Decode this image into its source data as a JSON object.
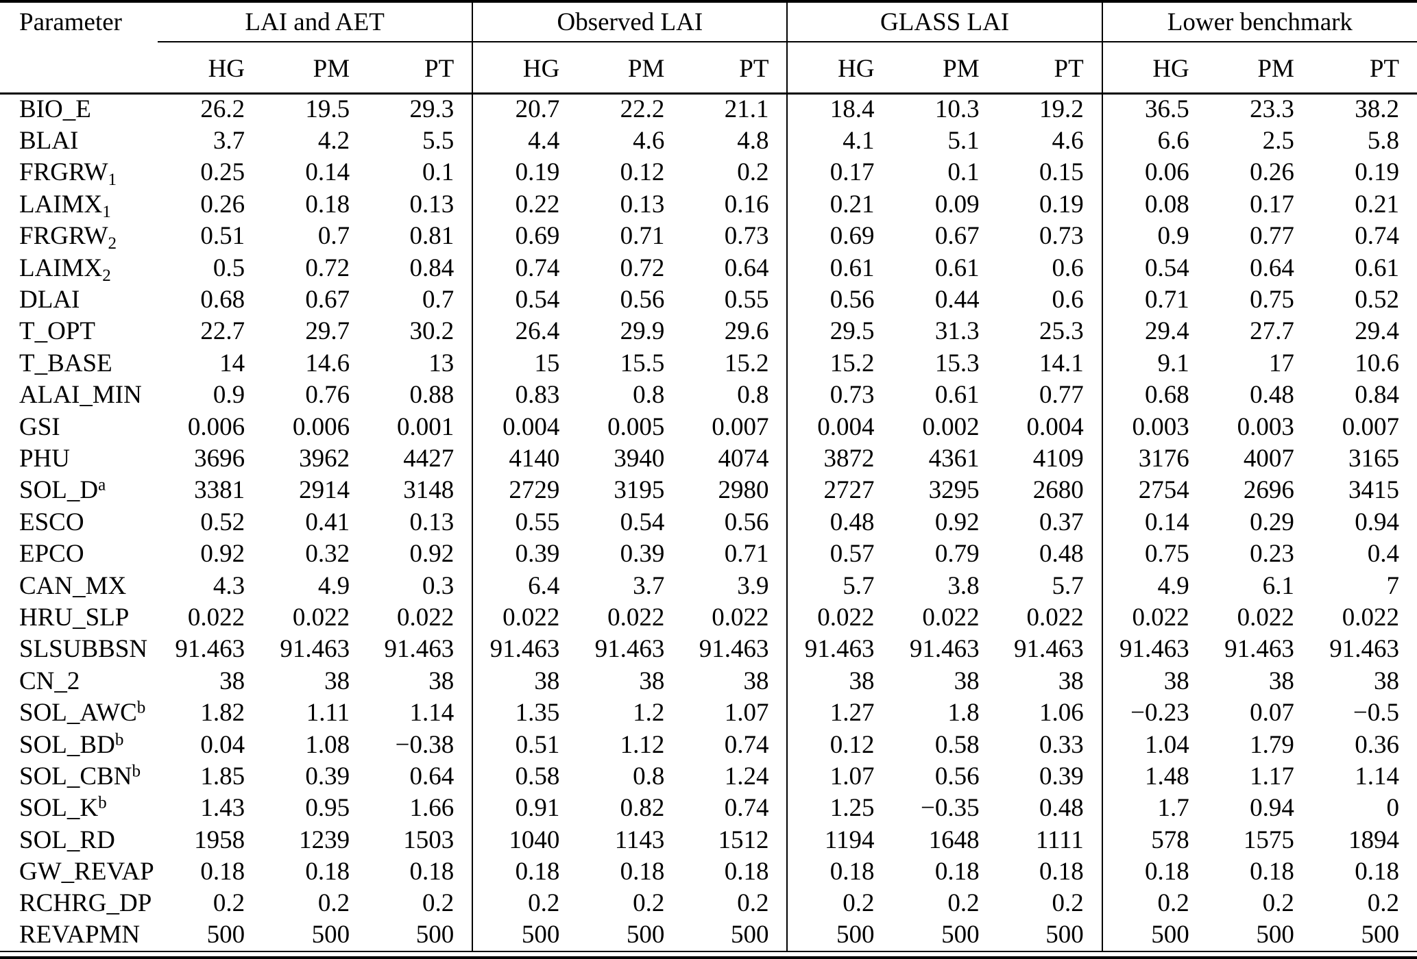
{
  "colors": {
    "text": "#000000",
    "background": "#ffffff",
    "rule": "#000000"
  },
  "table": {
    "corner_header": "Parameter",
    "groups": [
      {
        "label": "LAI and AET",
        "columns": [
          "HG",
          "PM",
          "PT"
        ]
      },
      {
        "label": "Observed LAI",
        "columns": [
          "HG",
          "PM",
          "PT"
        ]
      },
      {
        "label": "GLASS LAI",
        "columns": [
          "HG",
          "PM",
          "PT"
        ]
      },
      {
        "label": "Lower benchmark",
        "columns": [
          "HG",
          "PM",
          "PT"
        ]
      }
    ],
    "rows": [
      {
        "name": "BIO_E",
        "values": [
          "26.2",
          "19.5",
          "29.3",
          "20.7",
          "22.2",
          "21.1",
          "18.4",
          "10.3",
          "19.2",
          "36.5",
          "23.3",
          "38.2"
        ]
      },
      {
        "name": "BLAI",
        "values": [
          "3.7",
          "4.2",
          "5.5",
          "4.4",
          "4.6",
          "4.8",
          "4.1",
          "5.1",
          "4.6",
          "6.6",
          "2.5",
          "5.8"
        ]
      },
      {
        "name": "FRGRW",
        "sub": "1",
        "values": [
          "0.25",
          "0.14",
          "0.1",
          "0.19",
          "0.12",
          "0.2",
          "0.17",
          "0.1",
          "0.15",
          "0.06",
          "0.26",
          "0.19"
        ]
      },
      {
        "name": "LAIMX",
        "sub": "1",
        "values": [
          "0.26",
          "0.18",
          "0.13",
          "0.22",
          "0.13",
          "0.16",
          "0.21",
          "0.09",
          "0.19",
          "0.08",
          "0.17",
          "0.21"
        ]
      },
      {
        "name": "FRGRW",
        "sub": "2",
        "values": [
          "0.51",
          "0.7",
          "0.81",
          "0.69",
          "0.71",
          "0.73",
          "0.69",
          "0.67",
          "0.73",
          "0.9",
          "0.77",
          "0.74"
        ]
      },
      {
        "name": "LAIMX",
        "sub": "2",
        "values": [
          "0.5",
          "0.72",
          "0.84",
          "0.74",
          "0.72",
          "0.64",
          "0.61",
          "0.61",
          "0.6",
          "0.54",
          "0.64",
          "0.61"
        ]
      },
      {
        "name": "DLAI",
        "values": [
          "0.68",
          "0.67",
          "0.7",
          "0.54",
          "0.56",
          "0.55",
          "0.56",
          "0.44",
          "0.6",
          "0.71",
          "0.75",
          "0.52"
        ]
      },
      {
        "name": "T_OPT",
        "values": [
          "22.7",
          "29.7",
          "30.2",
          "26.4",
          "29.9",
          "29.6",
          "29.5",
          "31.3",
          "25.3",
          "29.4",
          "27.7",
          "29.4"
        ]
      },
      {
        "name": "T_BASE",
        "values": [
          "14",
          "14.6",
          "13",
          "15",
          "15.5",
          "15.2",
          "15.2",
          "15.3",
          "14.1",
          "9.1",
          "17",
          "10.6"
        ]
      },
      {
        "name": "ALAI_MIN",
        "values": [
          "0.9",
          "0.76",
          "0.88",
          "0.83",
          "0.8",
          "0.8",
          "0.73",
          "0.61",
          "0.77",
          "0.68",
          "0.48",
          "0.84"
        ]
      },
      {
        "name": "GSI",
        "values": [
          "0.006",
          "0.006",
          "0.001",
          "0.004",
          "0.005",
          "0.007",
          "0.004",
          "0.002",
          "0.004",
          "0.003",
          "0.003",
          "0.007"
        ]
      },
      {
        "name": "PHU",
        "values": [
          "3696",
          "3962",
          "4427",
          "4140",
          "3940",
          "4074",
          "3872",
          "4361",
          "4109",
          "3176",
          "4007",
          "3165"
        ]
      },
      {
        "name": "SOL_D",
        "sup": "a",
        "values": [
          "3381",
          "2914",
          "3148",
          "2729",
          "3195",
          "2980",
          "2727",
          "3295",
          "2680",
          "2754",
          "2696",
          "3415"
        ]
      },
      {
        "name": "ESCO",
        "values": [
          "0.52",
          "0.41",
          "0.13",
          "0.55",
          "0.54",
          "0.56",
          "0.48",
          "0.92",
          "0.37",
          "0.14",
          "0.29",
          "0.94"
        ]
      },
      {
        "name": "EPCO",
        "values": [
          "0.92",
          "0.32",
          "0.92",
          "0.39",
          "0.39",
          "0.71",
          "0.57",
          "0.79",
          "0.48",
          "0.75",
          "0.23",
          "0.4"
        ]
      },
      {
        "name": "CAN_MX",
        "values": [
          "4.3",
          "4.9",
          "0.3",
          "6.4",
          "3.7",
          "3.9",
          "5.7",
          "3.8",
          "5.7",
          "4.9",
          "6.1",
          "7"
        ]
      },
      {
        "name": "HRU_SLP",
        "values": [
          "0.022",
          "0.022",
          "0.022",
          "0.022",
          "0.022",
          "0.022",
          "0.022",
          "0.022",
          "0.022",
          "0.022",
          "0.022",
          "0.022"
        ]
      },
      {
        "name": "SLSUBBSN",
        "values": [
          "91.463",
          "91.463",
          "91.463",
          "91.463",
          "91.463",
          "91.463",
          "91.463",
          "91.463",
          "91.463",
          "91.463",
          "91.463",
          "91.463"
        ]
      },
      {
        "name": "CN_2",
        "values": [
          "38",
          "38",
          "38",
          "38",
          "38",
          "38",
          "38",
          "38",
          "38",
          "38",
          "38",
          "38"
        ]
      },
      {
        "name": "SOL_AWC",
        "sup": "b",
        "values": [
          "1.82",
          "1.11",
          "1.14",
          "1.35",
          "1.2",
          "1.07",
          "1.27",
          "1.8",
          "1.06",
          "−0.23",
          "0.07",
          "−0.5"
        ]
      },
      {
        "name": "SOL_BD",
        "sup": "b",
        "values": [
          "0.04",
          "1.08",
          "−0.38",
          "0.51",
          "1.12",
          "0.74",
          "0.12",
          "0.58",
          "0.33",
          "1.04",
          "1.79",
          "0.36"
        ]
      },
      {
        "name": "SOL_CBN",
        "sup": "b",
        "values": [
          "1.85",
          "0.39",
          "0.64",
          "0.58",
          "0.8",
          "1.24",
          "1.07",
          "0.56",
          "0.39",
          "1.48",
          "1.17",
          "1.14"
        ]
      },
      {
        "name": "SOL_K",
        "sup": "b",
        "values": [
          "1.43",
          "0.95",
          "1.66",
          "0.91",
          "0.82",
          "0.74",
          "1.25",
          "−0.35",
          "0.48",
          "1.7",
          "0.94",
          "0"
        ]
      },
      {
        "name": "SOL_RD",
        "values": [
          "1958",
          "1239",
          "1503",
          "1040",
          "1143",
          "1512",
          "1194",
          "1648",
          "1111",
          "578",
          "1575",
          "1894"
        ]
      },
      {
        "name": "GW_REVAP",
        "values": [
          "0.18",
          "0.18",
          "0.18",
          "0.18",
          "0.18",
          "0.18",
          "0.18",
          "0.18",
          "0.18",
          "0.18",
          "0.18",
          "0.18"
        ]
      },
      {
        "name": "RCHRG_DP",
        "values": [
          "0.2",
          "0.2",
          "0.2",
          "0.2",
          "0.2",
          "0.2",
          "0.2",
          "0.2",
          "0.2",
          "0.2",
          "0.2",
          "0.2"
        ]
      },
      {
        "name": "REVAPMN",
        "values": [
          "500",
          "500",
          "500",
          "500",
          "500",
          "500",
          "500",
          "500",
          "500",
          "500",
          "500",
          "500"
        ]
      }
    ]
  }
}
